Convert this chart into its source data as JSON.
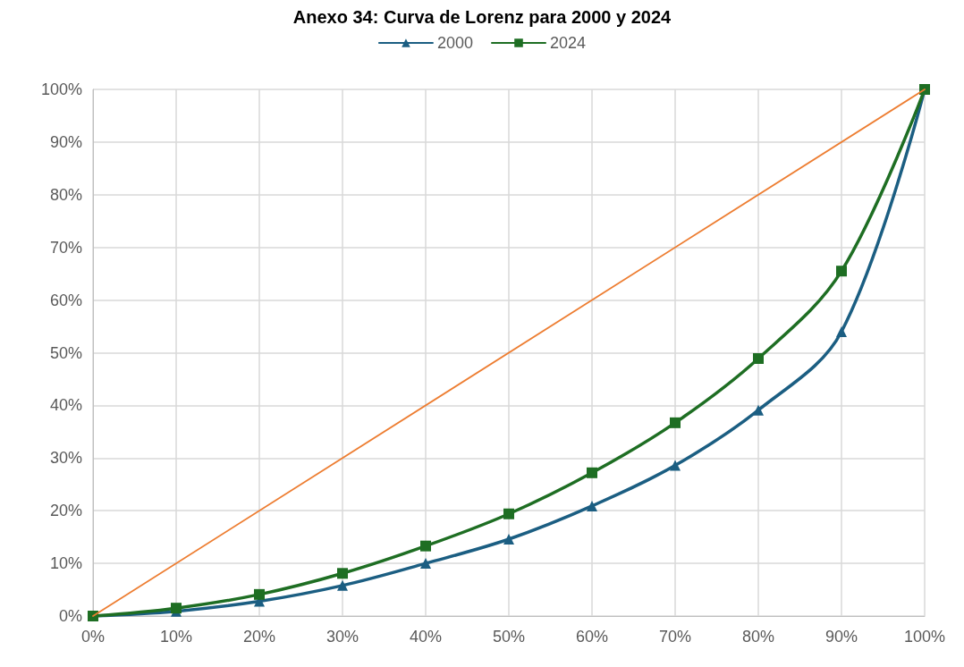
{
  "chart_data": {
    "type": "line",
    "title": "Anexo 34: Curva de Lorenz para 2000 y 2024",
    "x": [
      0,
      10,
      20,
      30,
      40,
      50,
      60,
      70,
      80,
      90,
      100
    ],
    "series": [
      {
        "name": "2000",
        "color": "#1b5e82",
        "marker": "triangle",
        "values": [
          0,
          0.9,
          2.8,
          5.8,
          10,
          14.6,
          20.9,
          28.6,
          39.1,
          54,
          100
        ]
      },
      {
        "name": "2024",
        "color": "#1e6e23",
        "marker": "square",
        "values": [
          0,
          1.5,
          4.1,
          8.1,
          13.3,
          19.4,
          27.2,
          36.7,
          48.9,
          65.5,
          100
        ]
      },
      {
        "color": "#ed7d31",
        "marker": "none",
        "x": [
          0,
          100
        ],
        "values": [
          0,
          100
        ]
      }
    ],
    "xlim": [
      0,
      100
    ],
    "ylim": [
      0,
      100
    ],
    "xticks": [
      {
        "value": 0,
        "label": "0%"
      },
      {
        "value": 10,
        "label": "10%"
      },
      {
        "value": 20,
        "label": "20%"
      },
      {
        "value": 30,
        "label": "30%"
      },
      {
        "value": 40,
        "label": "40%"
      },
      {
        "value": 50,
        "label": "50%"
      },
      {
        "value": 60,
        "label": "60%"
      },
      {
        "value": 70,
        "label": "70%"
      },
      {
        "value": 80,
        "label": "80%"
      },
      {
        "value": 90,
        "label": "90%"
      },
      {
        "value": 100,
        "label": "100%"
      }
    ],
    "yticks": [
      {
        "value": 0,
        "label": "0%"
      },
      {
        "value": 10,
        "label": "10%"
      },
      {
        "value": 20,
        "label": "20%"
      },
      {
        "value": 30,
        "label": "30%"
      },
      {
        "value": 40,
        "label": "40%"
      },
      {
        "value": 50,
        "label": "50%"
      },
      {
        "value": 60,
        "label": "60%"
      },
      {
        "value": 70,
        "label": "70%"
      },
      {
        "value": 80,
        "label": "80%"
      },
      {
        "value": 90,
        "label": "90%"
      },
      {
        "value": 100,
        "label": "100%"
      }
    ],
    "grid": true,
    "legend": "top"
  }
}
